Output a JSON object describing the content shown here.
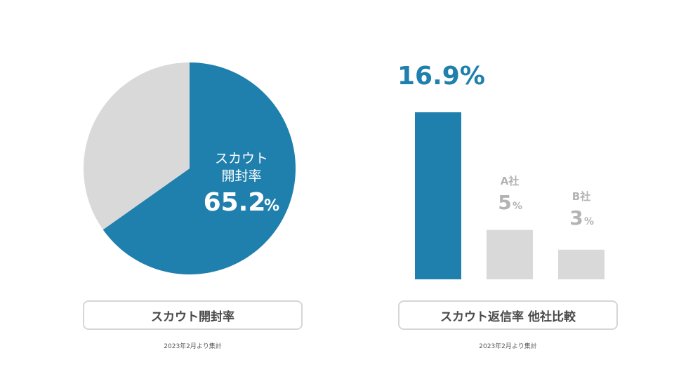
{
  "colors": {
    "accent": "#1f7fad",
    "muted": "#d9d9d9",
    "muted_text": "#b3b3b3",
    "text": "#4a4a4a"
  },
  "left_panel": {
    "caption": "スカウト開封率",
    "note": "2023年2月より集計",
    "inner_label_line1": "スカウト",
    "inner_label_line2": "開封率",
    "inner_value": "65.2",
    "inner_unit": "%"
  },
  "right_panel": {
    "caption": "スカウト返信率 他社比較",
    "note": "2023年2月より集計",
    "top_value": "16.9%",
    "bar_labels": [
      {
        "name": "",
        "value": "",
        "unit": ""
      },
      {
        "name": "A社",
        "value": "5",
        "unit": "%"
      },
      {
        "name": "B社",
        "value": "3",
        "unit": "%"
      }
    ]
  },
  "chart_data": [
    {
      "type": "pie",
      "labels": [
        "スカウト開封率",
        ""
      ],
      "values": [
        65.2,
        34.8
      ],
      "colors": [
        "#1f7fad",
        "#d9d9d9"
      ],
      "title": "スカウト開封率"
    },
    {
      "type": "bar",
      "categories": [
        "",
        "A社",
        "B社"
      ],
      "values": [
        16.9,
        5,
        3
      ],
      "colors": [
        "#1f7fad",
        "#d9d9d9",
        "#d9d9d9"
      ],
      "title": "スカウト返信率 他社比較",
      "ylim": [
        0,
        16.9
      ]
    }
  ]
}
